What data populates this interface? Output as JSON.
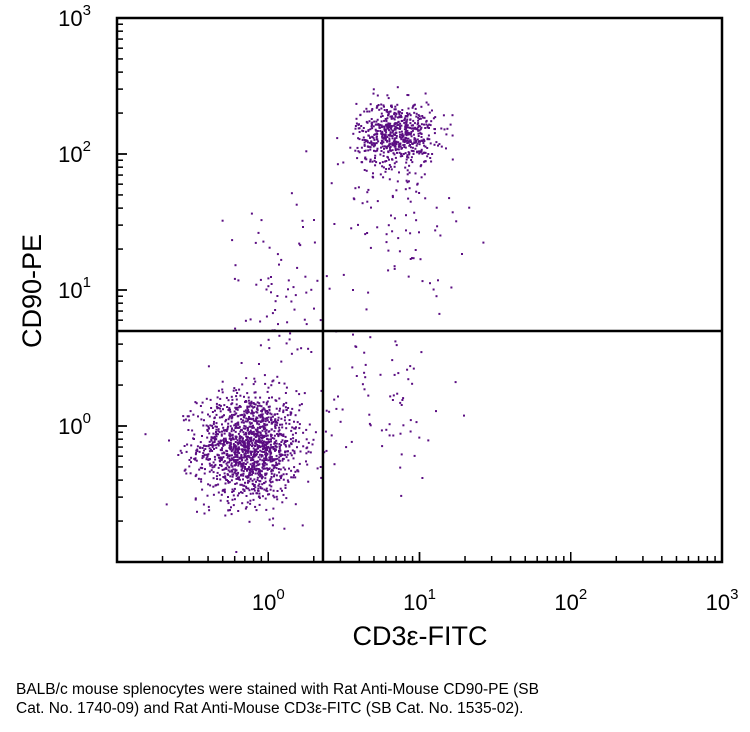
{
  "chart_data": {
    "type": "scatter",
    "xlabel": "CD3ε-FITC",
    "ylabel": "CD90-PE",
    "xscale": "log",
    "yscale": "log",
    "xlim": [
      0.1,
      1000
    ],
    "ylim": [
      0.1,
      1000
    ],
    "x_ticks": [
      {
        "base": "10",
        "exp": "0",
        "value": 1
      },
      {
        "base": "10",
        "exp": "1",
        "value": 10
      },
      {
        "base": "10",
        "exp": "2",
        "value": 100
      },
      {
        "base": "10",
        "exp": "3",
        "value": 1000
      }
    ],
    "y_ticks": [
      {
        "base": "10",
        "exp": "0",
        "value": 1
      },
      {
        "base": "10",
        "exp": "1",
        "value": 10
      },
      {
        "base": "10",
        "exp": "2",
        "value": 100
      },
      {
        "base": "10",
        "exp": "3",
        "value": 1000
      }
    ],
    "quadrant_gates": {
      "x": 2.3,
      "y": 5.0
    },
    "point_color": "#5a0d82",
    "populations": [
      {
        "name": "CD3ε- CD90- cells",
        "center": [
          0.75,
          0.7
        ],
        "log_spread": [
          0.17,
          0.2
        ],
        "approx_count": 1500
      },
      {
        "name": "CD3ε+ CD90+ T cells",
        "center": [
          7.0,
          140
        ],
        "log_spread": [
          0.13,
          0.12
        ],
        "approx_count": 650
      },
      {
        "name": "CD3ε+ CD90+ trailing events",
        "center": [
          8.0,
          40
        ],
        "log_spread": [
          0.2,
          0.3
        ],
        "approx_count": 90
      },
      {
        "name": "CD3ε+ CD90- events",
        "center": [
          6.0,
          1.5
        ],
        "log_spread": [
          0.22,
          0.3
        ],
        "approx_count": 70
      },
      {
        "name": "CD3ε- CD90+ events",
        "center": [
          1.2,
          8.0
        ],
        "log_spread": [
          0.25,
          0.4
        ],
        "approx_count": 90
      }
    ]
  },
  "caption": {
    "line1": "BALB/c mouse splenocytes were stained with Rat Anti-Mouse CD90-PE (SB",
    "line2": "Cat. No. 1740-09) and Rat Anti-Mouse CD3ε-FITC (SB Cat. No. 1535-02)."
  }
}
